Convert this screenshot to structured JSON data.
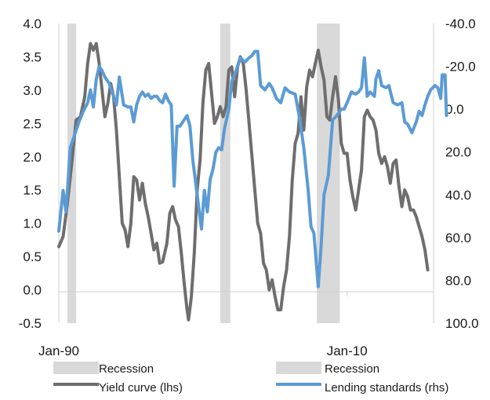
{
  "chart_data": {
    "type": "line",
    "title": "",
    "xlabel": "",
    "ylabel": "",
    "x_tick_labels": [
      "Jan-90",
      "Jan-10"
    ],
    "x_range": [
      1990.0,
      2016.0
    ],
    "left_axis": {
      "ticks": [
        "4.0",
        "3.5",
        "3.0",
        "2.5",
        "2.0",
        "1.5",
        "1.0",
        "0.5",
        "0.0",
        "-0.5"
      ],
      "ylim": [
        -0.5,
        4.0
      ]
    },
    "right_axis": {
      "ticks": [
        "-40.0",
        "-20.0",
        "0.0",
        "20.0",
        "40.0",
        "60.0",
        "80.0",
        "100.0"
      ],
      "ylim": [
        -40,
        100
      ],
      "inverted": true
    },
    "recessions": [
      {
        "start": 1990.6,
        "end": 1991.2
      },
      {
        "start": 2001.2,
        "end": 2001.9
      },
      {
        "start": 2007.9,
        "end": 2009.5
      }
    ],
    "grid": false,
    "legend_position": "bottom",
    "legend": [
      {
        "label": "Recession",
        "kind": "bar",
        "color": "#d9d9d9"
      },
      {
        "label": "Recession",
        "kind": "bar",
        "color": "#d9d9d9"
      },
      {
        "label": "Yield curve (lhs)",
        "kind": "line",
        "color": "#6e6e6e"
      },
      {
        "label": "Lending standards (rhs)",
        "kind": "line",
        "color": "#5b9bd5"
      }
    ],
    "series": [
      {
        "name": "Yield curve (lhs)",
        "axis": "left",
        "color": "#6e6e6e",
        "points": [
          [
            1990.0,
            0.65
          ],
          [
            1990.3,
            0.8
          ],
          [
            1990.6,
            1.3
          ],
          [
            1990.9,
            1.9
          ],
          [
            1991.2,
            2.55
          ],
          [
            1991.5,
            2.6
          ],
          [
            1991.8,
            2.9
          ],
          [
            1992.0,
            3.4
          ],
          [
            1992.2,
            3.7
          ],
          [
            1992.4,
            3.6
          ],
          [
            1992.6,
            3.7
          ],
          [
            1992.8,
            3.4
          ],
          [
            1993.0,
            3.0
          ],
          [
            1993.2,
            2.6
          ],
          [
            1993.4,
            2.8
          ],
          [
            1993.6,
            3.1
          ],
          [
            1993.8,
            2.9
          ],
          [
            1994.0,
            2.4
          ],
          [
            1994.2,
            1.7
          ],
          [
            1994.4,
            1.0
          ],
          [
            1994.6,
            0.9
          ],
          [
            1994.8,
            0.65
          ],
          [
            1995.0,
            1.0
          ],
          [
            1995.2,
            1.7
          ],
          [
            1995.4,
            1.65
          ],
          [
            1995.6,
            1.35
          ],
          [
            1995.8,
            1.6
          ],
          [
            1996.0,
            1.3
          ],
          [
            1996.2,
            1.1
          ],
          [
            1996.4,
            0.85
          ],
          [
            1996.6,
            0.6
          ],
          [
            1996.8,
            0.7
          ],
          [
            1997.0,
            0.4
          ],
          [
            1997.2,
            0.42
          ],
          [
            1997.5,
            0.7
          ],
          [
            1997.7,
            1.15
          ],
          [
            1997.9,
            1.25
          ],
          [
            1998.1,
            1.05
          ],
          [
            1998.3,
            0.95
          ],
          [
            1998.5,
            0.55
          ],
          [
            1998.7,
            0.1
          ],
          [
            1998.9,
            -0.3
          ],
          [
            1999.0,
            -0.45
          ],
          [
            1999.2,
            -0.1
          ],
          [
            1999.4,
            0.55
          ],
          [
            1999.6,
            1.5
          ],
          [
            1999.8,
            1.95
          ],
          [
            2000.0,
            2.8
          ],
          [
            2000.2,
            3.3
          ],
          [
            2000.4,
            3.4
          ],
          [
            2000.6,
            2.95
          ],
          [
            2000.8,
            2.5
          ],
          [
            2001.0,
            2.6
          ],
          [
            2001.2,
            2.75
          ],
          [
            2001.4,
            2.6
          ],
          [
            2001.6,
            2.75
          ],
          [
            2001.8,
            3.3
          ],
          [
            2002.0,
            3.35
          ],
          [
            2002.2,
            2.9
          ],
          [
            2002.4,
            3.35
          ],
          [
            2002.6,
            3.5
          ],
          [
            2002.8,
            3.4
          ],
          [
            2003.0,
            3.0
          ],
          [
            2003.2,
            2.5
          ],
          [
            2003.4,
            2.0
          ],
          [
            2003.6,
            1.5
          ],
          [
            2003.8,
            1.0
          ],
          [
            2004.0,
            0.85
          ],
          [
            2004.2,
            0.4
          ],
          [
            2004.4,
            0.3
          ],
          [
            2004.6,
            0.0
          ],
          [
            2004.8,
            0.15
          ],
          [
            2005.0,
            -0.1
          ],
          [
            2005.2,
            -0.3
          ],
          [
            2005.4,
            -0.3
          ],
          [
            2005.6,
            0.05
          ],
          [
            2005.8,
            0.3
          ],
          [
            2006.0,
            0.8
          ],
          [
            2006.2,
            1.65
          ],
          [
            2006.4,
            2.2
          ],
          [
            2006.6,
            2.35
          ],
          [
            2006.8,
            2.9
          ],
          [
            2007.0,
            2.4
          ],
          [
            2007.2,
            3.05
          ],
          [
            2007.4,
            3.3
          ],
          [
            2007.6,
            3.2
          ],
          [
            2007.8,
            3.4
          ],
          [
            2008.0,
            3.6
          ],
          [
            2008.2,
            3.35
          ],
          [
            2008.4,
            3.15
          ],
          [
            2008.6,
            2.6
          ],
          [
            2008.8,
            2.55
          ],
          [
            2009.0,
            2.9
          ],
          [
            2009.2,
            3.2
          ],
          [
            2009.4,
            2.85
          ],
          [
            2009.6,
            2.2
          ],
          [
            2009.8,
            2.05
          ],
          [
            2010.0,
            2.05
          ],
          [
            2010.2,
            1.65
          ],
          [
            2010.4,
            1.4
          ],
          [
            2010.6,
            1.2
          ],
          [
            2010.8,
            1.5
          ],
          [
            2011.0,
            1.8
          ],
          [
            2011.2,
            2.6
          ],
          [
            2011.4,
            2.7
          ],
          [
            2011.6,
            2.6
          ],
          [
            2011.8,
            2.55
          ],
          [
            2012.0,
            2.4
          ],
          [
            2012.2,
            2.05
          ],
          [
            2012.4,
            1.9
          ],
          [
            2012.6,
            2.0
          ],
          [
            2012.8,
            1.85
          ],
          [
            2013.0,
            1.6
          ],
          [
            2013.2,
            1.9
          ],
          [
            2013.4,
            1.95
          ],
          [
            2013.6,
            1.55
          ],
          [
            2013.8,
            1.25
          ],
          [
            2014.0,
            1.5
          ],
          [
            2014.2,
            1.4
          ],
          [
            2014.4,
            1.2
          ],
          [
            2014.6,
            1.2
          ],
          [
            2014.8,
            1.1
          ],
          [
            2015.0,
            0.95
          ],
          [
            2015.2,
            0.8
          ],
          [
            2015.4,
            0.6
          ],
          [
            2015.6,
            0.3
          ]
        ]
      },
      {
        "name": "Lending standards (rhs)",
        "axis": "right",
        "color": "#5b9bd5",
        "points": [
          [
            1990.0,
            57
          ],
          [
            1990.3,
            38
          ],
          [
            1990.5,
            48
          ],
          [
            1990.8,
            18
          ],
          [
            1991.1,
            12
          ],
          [
            1991.4,
            6
          ],
          [
            1991.7,
            1
          ],
          [
            1992.0,
            -3
          ],
          [
            1992.2,
            -9
          ],
          [
            1992.4,
            -1
          ],
          [
            1992.6,
            -14
          ],
          [
            1992.8,
            -20
          ],
          [
            1993.0,
            -18
          ],
          [
            1993.2,
            -15
          ],
          [
            1993.5,
            -12
          ],
          [
            1993.7,
            -8
          ],
          [
            1994.0,
            -2
          ],
          [
            1994.2,
            -15
          ],
          [
            1994.5,
            -2
          ],
          [
            1994.8,
            -1
          ],
          [
            1995.0,
            -1
          ],
          [
            1995.2,
            6
          ],
          [
            1995.4,
            -2
          ],
          [
            1995.6,
            -6
          ],
          [
            1995.8,
            -8
          ],
          [
            1996.0,
            -6
          ],
          [
            1996.2,
            -7
          ],
          [
            1996.4,
            -5
          ],
          [
            1996.6,
            -6
          ],
          [
            1996.8,
            -6
          ],
          [
            1997.0,
            -4
          ],
          [
            1997.2,
            -3
          ],
          [
            1997.4,
            -7
          ],
          [
            1997.6,
            -4
          ],
          [
            1997.8,
            -2
          ],
          [
            1998.0,
            36
          ],
          [
            1998.2,
            8
          ],
          [
            1998.4,
            8
          ],
          [
            1998.6,
            6
          ],
          [
            1998.9,
            3
          ],
          [
            1999.1,
            8
          ],
          [
            1999.3,
            24
          ],
          [
            1999.6,
            40
          ],
          [
            1999.9,
            56
          ],
          [
            2000.1,
            38
          ],
          [
            2000.3,
            48
          ],
          [
            2000.5,
            33
          ],
          [
            2000.7,
            28
          ],
          [
            2000.9,
            20
          ],
          [
            2001.1,
            18
          ],
          [
            2001.3,
            19
          ],
          [
            2001.5,
            9
          ],
          [
            2001.8,
            0
          ],
          [
            2002.0,
            -13
          ],
          [
            2002.3,
            -18
          ],
          [
            2002.6,
            -24
          ],
          [
            2002.9,
            -22
          ],
          [
            2003.2,
            -24
          ],
          [
            2003.4,
            -25
          ],
          [
            2003.6,
            -27
          ],
          [
            2003.8,
            -27
          ],
          [
            2004.0,
            -11
          ],
          [
            2004.3,
            -9
          ],
          [
            2004.6,
            -12
          ],
          [
            2004.8,
            -10
          ],
          [
            2005.1,
            -5
          ],
          [
            2005.4,
            -3
          ],
          [
            2005.7,
            -10
          ],
          [
            2006.0,
            -8
          ],
          [
            2006.4,
            -7
          ],
          [
            2006.7,
            4
          ],
          [
            2007.0,
            18
          ],
          [
            2007.3,
            38
          ],
          [
            2007.5,
            55
          ],
          [
            2007.7,
            58
          ],
          [
            2008.0,
            83
          ],
          [
            2008.2,
            64
          ],
          [
            2008.4,
            40
          ],
          [
            2008.7,
            31
          ],
          [
            2009.0,
            5
          ],
          [
            2009.3,
            3
          ],
          [
            2009.6,
            0
          ],
          [
            2009.8,
            0
          ],
          [
            2010.0,
            -3
          ],
          [
            2010.3,
            -8
          ],
          [
            2010.6,
            -7
          ],
          [
            2010.8,
            -8
          ],
          [
            2011.0,
            -10
          ],
          [
            2011.2,
            -24
          ],
          [
            2011.4,
            -6
          ],
          [
            2011.6,
            -8
          ],
          [
            2011.9,
            -6
          ],
          [
            2012.0,
            -14
          ],
          [
            2012.2,
            -18
          ],
          [
            2012.4,
            -11
          ],
          [
            2012.7,
            -10
          ],
          [
            2012.9,
            -11
          ],
          [
            2013.2,
            -3
          ],
          [
            2013.5,
            -2
          ],
          [
            2013.8,
            -3
          ],
          [
            2014.0,
            6
          ],
          [
            2014.2,
            7
          ],
          [
            2014.5,
            11
          ],
          [
            2014.8,
            6
          ],
          [
            2015.0,
            1
          ],
          [
            2015.2,
            3
          ],
          [
            2015.4,
            -2
          ],
          [
            2015.6,
            -6
          ],
          [
            2015.8,
            -9
          ],
          [
            2016.1,
            -11
          ],
          [
            2016.3,
            -10
          ],
          [
            2016.5,
            -5
          ],
          [
            2016.6,
            -16
          ],
          [
            2016.8,
            -16
          ],
          [
            2016.9,
            3
          ]
        ]
      }
    ]
  }
}
